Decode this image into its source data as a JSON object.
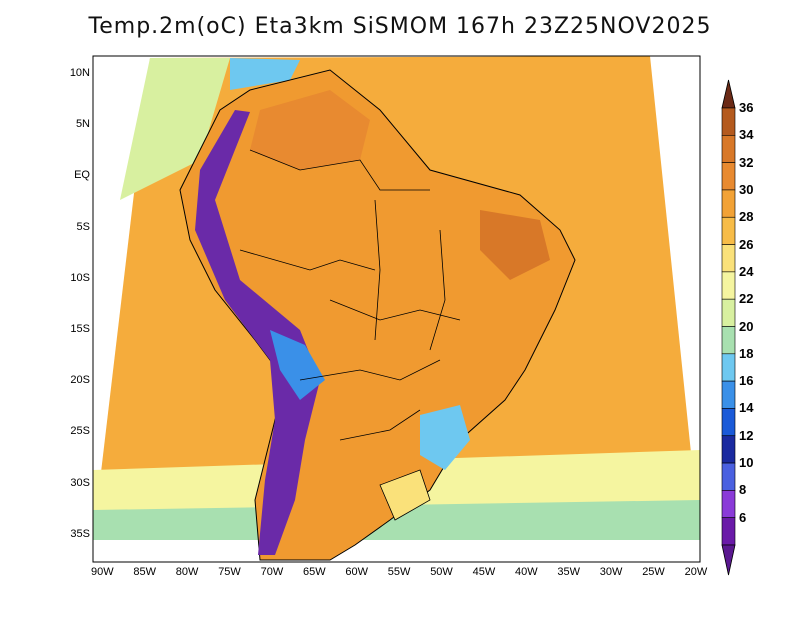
{
  "title": "Temp.2m(oC) Eta3km SiSMOM 167h 23Z25NOV2025",
  "map": {
    "lat_labels": [
      "10N",
      "5N",
      "EQ",
      "5S",
      "10S",
      "15S",
      "20S",
      "25S",
      "30S",
      "35S"
    ],
    "lon_labels": [
      "90W",
      "85W",
      "80W",
      "75W",
      "70W",
      "65W",
      "60W",
      "55W",
      "50W",
      "45W",
      "40W",
      "35W",
      "30W",
      "25W",
      "20W"
    ],
    "ocean_color": "#f5ac3c",
    "land_color": "#f09a30",
    "cold_andes_color": "#6a2aa8"
  },
  "colorbar": {
    "labels": [
      "36",
      "34",
      "32",
      "30",
      "28",
      "26",
      "24",
      "22",
      "20",
      "18",
      "16",
      "14",
      "12",
      "10",
      "8",
      "6"
    ],
    "colors": [
      "#b45a1e",
      "#d87828",
      "#e88a30",
      "#f2a236",
      "#f7bc48",
      "#fae17a",
      "#f5f5a0",
      "#d8f0a0",
      "#a8e0b0",
      "#6ec8f0",
      "#3a90e8",
      "#1a5ad8",
      "#1a2aa0",
      "#4a60e0",
      "#8a3ad8",
      "#6a1aa8"
    ],
    "top_color": "#6b2a16",
    "bottom_color": "#5a1890"
  }
}
